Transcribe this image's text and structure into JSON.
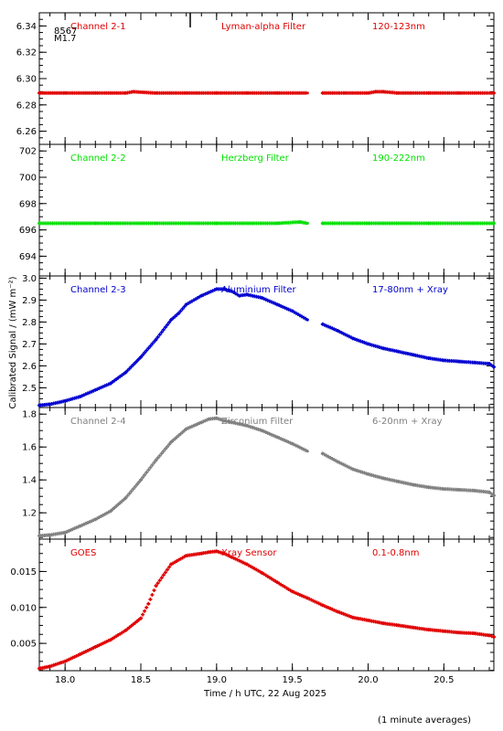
{
  "figure": {
    "xlabel": "Time / h UTC, 22 Aug 2025",
    "ylabel": "Calibrated Signal  / (mW m⁻²)",
    "footnote": "(1 minute averages)",
    "marker_labels": [
      "8567",
      "M1.7"
    ],
    "xlim": [
      17.83,
      20.83
    ],
    "xticks": [
      "18.0",
      "18.5",
      "19.0",
      "19.5",
      "20.0",
      "20.5"
    ]
  },
  "chart_data": [
    {
      "type": "scatter",
      "channel": "Channel 2-1",
      "filter": "Lyman-alpha Filter",
      "band": "120-123nm",
      "color": "#e00000",
      "ylim": [
        6.25,
        6.35
      ],
      "yticks": [
        "6.26",
        "6.28",
        "6.30",
        "6.32",
        "6.34"
      ],
      "series": [
        {
          "x": [
            17.83,
            18.0,
            18.2,
            18.4,
            18.45,
            18.6,
            18.8,
            19.0,
            19.2,
            19.4,
            19.6,
            19.65,
            19.7,
            19.85,
            20.0,
            20.05,
            20.1,
            20.2,
            20.4,
            20.6,
            20.83
          ],
          "y": [
            6.289,
            6.289,
            6.289,
            6.289,
            6.29,
            6.289,
            6.289,
            6.289,
            6.289,
            6.289,
            6.289,
            null,
            6.289,
            6.289,
            6.289,
            6.29,
            6.29,
            6.289,
            6.289,
            6.289,
            6.289
          ]
        }
      ]
    },
    {
      "type": "scatter",
      "channel": "Channel 2-2",
      "filter": "Herzberg Filter",
      "band": "190-222nm",
      "color": "#00e000",
      "ylim": [
        692.5,
        702.5
      ],
      "yticks": [
        "694",
        "696",
        "698",
        "700",
        "702"
      ],
      "series": [
        {
          "x": [
            17.83,
            18.2,
            18.6,
            19.0,
            19.4,
            19.55,
            19.6,
            19.65,
            19.7,
            20.0,
            20.4,
            20.83
          ],
          "y": [
            696.5,
            696.5,
            696.5,
            696.5,
            696.5,
            696.6,
            696.5,
            null,
            696.5,
            696.5,
            696.5,
            696.5
          ]
        }
      ]
    },
    {
      "type": "scatter",
      "channel": "Channel 2-3",
      "filter": "Aluminium Filter",
      "band": "17-80nm + Xray",
      "color": "#0000d0",
      "ylim": [
        2.41,
        3.01
      ],
      "yticks": [
        "2.5",
        "2.6",
        "2.7",
        "2.8",
        "2.9",
        "3.0"
      ],
      "series": [
        {
          "x": [
            17.83,
            17.9,
            18.0,
            18.1,
            18.2,
            18.3,
            18.4,
            18.5,
            18.6,
            18.7,
            18.75,
            18.8,
            18.9,
            19.0,
            19.05,
            19.1,
            19.15,
            19.2,
            19.3,
            19.4,
            19.5,
            19.6,
            19.65,
            19.7,
            19.8,
            19.9,
            20.0,
            20.1,
            20.2,
            20.3,
            20.4,
            20.5,
            20.6,
            20.7,
            20.8,
            20.83
          ],
          "y": [
            2.42,
            2.425,
            2.44,
            2.46,
            2.49,
            2.52,
            2.57,
            2.64,
            2.72,
            2.81,
            2.84,
            2.88,
            2.92,
            2.95,
            2.95,
            2.94,
            2.92,
            2.925,
            2.91,
            2.88,
            2.85,
            2.81,
            null,
            2.79,
            2.76,
            2.725,
            2.7,
            2.68,
            2.665,
            2.65,
            2.635,
            2.625,
            2.62,
            2.615,
            2.61,
            2.595
          ]
        }
      ]
    },
    {
      "type": "scatter",
      "channel": "Channel 2-4",
      "filter": "Zirconium Filter",
      "band": "6-20nm + Xray",
      "color": "#808080",
      "ylim": [
        1.04,
        1.84
      ],
      "yticks": [
        "1.2",
        "1.4",
        "1.6",
        "1.8"
      ],
      "series": [
        {
          "x": [
            17.83,
            17.9,
            18.0,
            18.1,
            18.2,
            18.3,
            18.4,
            18.5,
            18.6,
            18.7,
            18.8,
            18.9,
            18.95,
            19.0,
            19.05,
            19.1,
            19.2,
            19.3,
            19.4,
            19.5,
            19.6,
            19.65,
            19.7,
            19.8,
            19.9,
            20.0,
            20.1,
            20.2,
            20.3,
            20.4,
            20.5,
            20.6,
            20.7,
            20.8,
            20.83
          ],
          "y": [
            1.06,
            1.065,
            1.08,
            1.12,
            1.16,
            1.21,
            1.29,
            1.4,
            1.52,
            1.63,
            1.71,
            1.75,
            1.77,
            1.775,
            1.76,
            1.75,
            1.73,
            1.7,
            1.66,
            1.62,
            1.575,
            null,
            1.56,
            1.51,
            1.465,
            1.435,
            1.41,
            1.39,
            1.37,
            1.355,
            1.345,
            1.34,
            1.335,
            1.325,
            1.305
          ]
        }
      ]
    },
    {
      "type": "scatter",
      "channel": "GOES",
      "filter": "Xray Sensor",
      "band": "0.1-0.8nm",
      "color": "#e00000",
      "ylim": [
        0.0012,
        0.0195
      ],
      "yticks": [
        "0.005",
        "0.010",
        "0.015"
      ],
      "series": [
        {
          "x": [
            17.83,
            17.9,
            18.0,
            18.1,
            18.2,
            18.3,
            18.4,
            18.5,
            18.55,
            18.6,
            18.7,
            18.8,
            18.9,
            18.95,
            19.0,
            19.05,
            19.1,
            19.2,
            19.3,
            19.4,
            19.5,
            19.6,
            19.7,
            19.8,
            19.9,
            20.0,
            20.1,
            20.2,
            20.3,
            20.4,
            20.5,
            20.6,
            20.7,
            20.8,
            20.83
          ],
          "y": [
            0.0015,
            0.0018,
            0.0025,
            0.0035,
            0.0045,
            0.0055,
            0.0068,
            0.0085,
            0.0105,
            0.013,
            0.016,
            0.0172,
            0.0175,
            0.0177,
            0.0178,
            0.0175,
            0.017,
            0.016,
            0.0148,
            0.0135,
            0.0122,
            0.0113,
            0.0103,
            0.0094,
            0.0086,
            0.0082,
            0.0078,
            0.0075,
            0.0072,
            0.0069,
            0.0067,
            0.0065,
            0.0064,
            0.0061,
            0.0059
          ]
        }
      ]
    }
  ]
}
